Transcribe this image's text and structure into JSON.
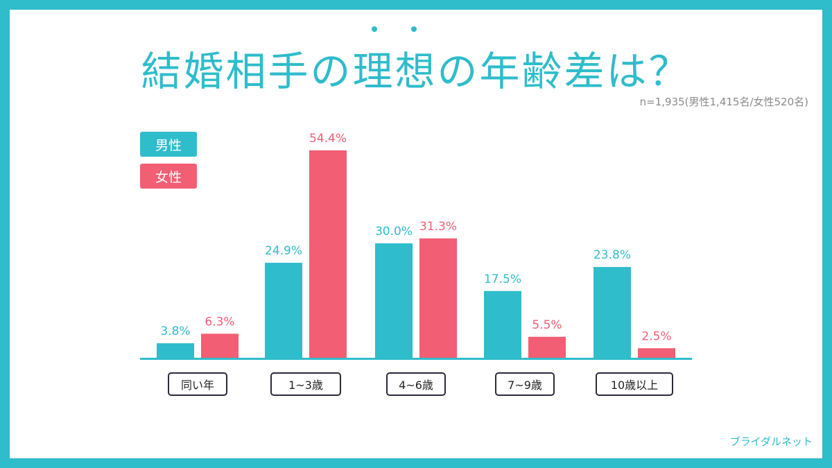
{
  "title": "結婚相手の理想の年齢差は？",
  "sample_note": "n=1,935(男性1,415名/女性520名)",
  "brand": "ブライダルネット",
  "colors": {
    "male": "#2fbccb",
    "female": "#f25e74",
    "frame": "#2fbccb"
  },
  "chart_data": {
    "type": "bar",
    "title": "結婚相手の理想の年齢差は？",
    "categories": [
      "同い年",
      "1~3歳",
      "4~6歳",
      "7~9歳",
      "10歳以上"
    ],
    "series": [
      {
        "name": "男性",
        "values": [
          3.8,
          24.9,
          30.0,
          17.5,
          23.8
        ],
        "labels": [
          "3.8%",
          "24.9%",
          "30.0%",
          "17.5%",
          "23.8%"
        ]
      },
      {
        "name": "女性",
        "values": [
          6.3,
          54.4,
          31.3,
          5.5,
          2.5
        ],
        "labels": [
          "6.3%",
          "54.4%",
          "31.3%",
          "5.5%",
          "2.5%"
        ]
      }
    ],
    "unit": "%",
    "ylim": [
      0,
      60
    ],
    "legend_position": "top-left",
    "grid": false
  }
}
